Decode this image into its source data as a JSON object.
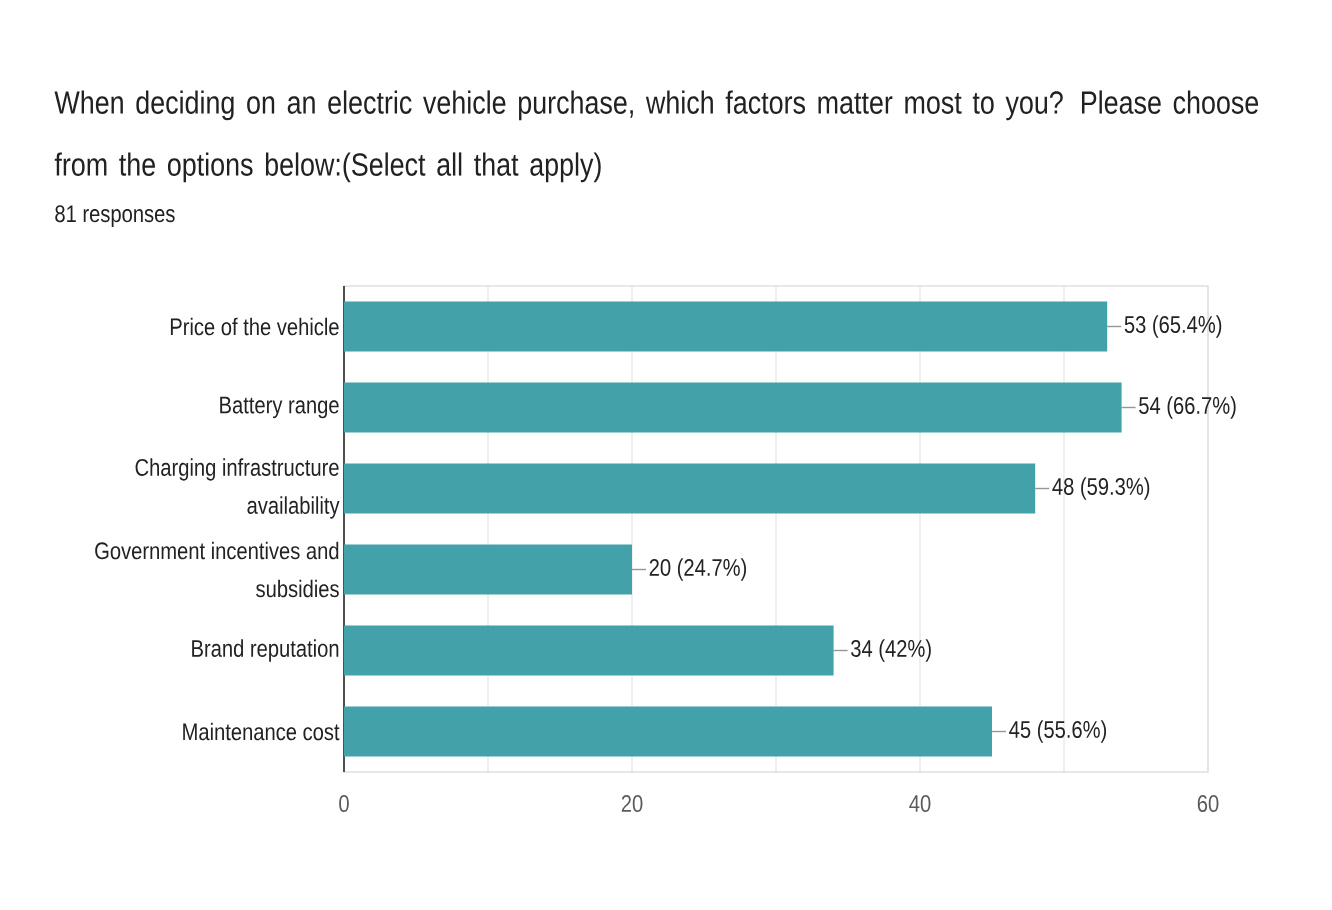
{
  "chart_data": {
    "type": "bar",
    "orientation": "horizontal",
    "title": "When deciding on an electric vehicle purchase, which factors matter most to you? Please choose from the options below:(Select all that apply)",
    "subtitle": "81 responses",
    "categories": [
      "Price of the vehicle",
      "Battery range",
      "Charging infrastructure availability",
      "Government incentives and subsidies",
      "Brand reputation",
      "Maintenance cost"
    ],
    "values": [
      53,
      54,
      48,
      20,
      34,
      45
    ],
    "value_labels": [
      "53 (65.4%)",
      "54 (66.7%)",
      "48 (59.3%)",
      "20 (24.7%)",
      "34 (42%)",
      "45 (55.6%)"
    ],
    "color": "#43a1aa",
    "xlim": [
      0,
      60
    ],
    "xticks": [
      0,
      {
        "value": 10,
        "label": null
      },
      20,
      {
        "value": 30,
        "label": null
      },
      40,
      {
        "value": 50,
        "label": null
      },
      60
    ],
    "grid": "x"
  }
}
